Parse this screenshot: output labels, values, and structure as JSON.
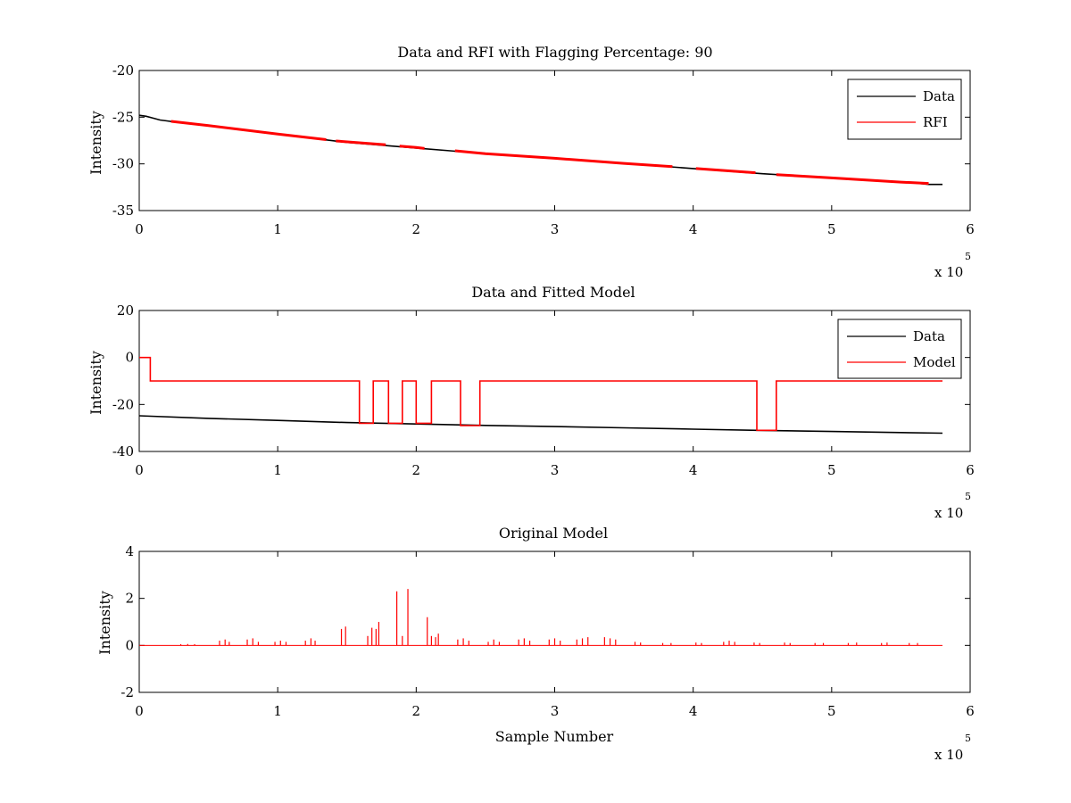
{
  "chart_data": [
    {
      "type": "line",
      "title": "Data and RFI with Flagging Percentage: 90",
      "xlabel": "",
      "ylabel": "Intensity",
      "xlim": [
        0,
        6
      ],
      "ylim": [
        -35,
        -20
      ],
      "x_multiplier": "x 10",
      "x_multiplier_exponent": "5",
      "x_ticks": [
        "0",
        "1",
        "2",
        "3",
        "4",
        "5",
        "6"
      ],
      "y_ticks": [
        "-35",
        "-30",
        "-25",
        "-20"
      ],
      "legend": {
        "placement": "top-right",
        "entries": [
          "Data",
          "RFI"
        ]
      },
      "series": [
        {
          "name": "Data",
          "color": "#000000",
          "x": [
            0.0,
            0.05,
            0.1,
            0.15,
            0.2,
            0.25,
            0.5,
            1.0,
            1.5,
            2.0,
            2.5,
            3.0,
            3.5,
            4.0,
            4.5,
            5.0,
            5.5,
            5.6,
            5.7,
            5.8
          ],
          "y": [
            -24.8,
            -24.9,
            -25.1,
            -25.3,
            -25.4,
            -25.5,
            -25.9,
            -26.8,
            -27.7,
            -28.3,
            -28.9,
            -29.4,
            -29.95,
            -30.5,
            -31.05,
            -31.5,
            -31.95,
            -32.05,
            -32.2,
            -32.2
          ]
        },
        {
          "name": "RFI",
          "color": "#ff0000",
          "segments": [
            {
              "x": [
                0.23,
                0.5,
                1.0,
                1.35
              ],
              "y": [
                -25.45,
                -25.9,
                -26.8,
                -27.4
              ]
            },
            {
              "x": [
                1.42,
                1.78
              ],
              "y": [
                -27.55,
                -27.95
              ]
            },
            {
              "x": [
                1.88,
                2.0,
                2.06
              ],
              "y": [
                -28.1,
                -28.25,
                -28.35
              ]
            },
            {
              "x": [
                2.28,
                2.5,
                3.0,
                3.5,
                3.85
              ],
              "y": [
                -28.6,
                -28.9,
                -29.4,
                -29.95,
                -30.3
              ]
            },
            {
              "x": [
                4.02,
                4.45
              ],
              "y": [
                -30.5,
                -30.95
              ]
            },
            {
              "x": [
                4.6,
                5.0,
                5.5,
                5.7
              ],
              "y": [
                -31.15,
                -31.5,
                -31.95,
                -32.1
              ]
            }
          ]
        }
      ]
    },
    {
      "type": "line",
      "title": "Data and Fitted Model",
      "xlabel": "",
      "ylabel": "Intensity",
      "xlim": [
        0,
        6
      ],
      "ylim": [
        -40,
        20
      ],
      "x_multiplier": "x 10",
      "x_multiplier_exponent": "5",
      "x_ticks": [
        "0",
        "1",
        "2",
        "3",
        "4",
        "5",
        "6"
      ],
      "y_ticks": [
        "-40",
        "-20",
        "0",
        "20"
      ],
      "legend": {
        "placement": "top-right",
        "entries": [
          "Data",
          "Model"
        ]
      },
      "series": [
        {
          "name": "Data",
          "color": "#000000",
          "x": [
            0.0,
            0.5,
            1.0,
            1.5,
            2.0,
            2.5,
            3.0,
            3.5,
            4.0,
            4.5,
            5.0,
            5.5,
            5.8
          ],
          "y": [
            -24.8,
            -25.9,
            -26.8,
            -27.7,
            -28.3,
            -28.9,
            -29.4,
            -29.95,
            -30.5,
            -31.05,
            -31.5,
            -31.95,
            -32.2
          ]
        },
        {
          "name": "Model",
          "color": "#ff0000",
          "x": [
            0.0,
            0.08,
            0.08,
            1.59,
            1.59,
            1.69,
            1.69,
            1.8,
            1.8,
            1.9,
            1.9,
            2.0,
            2.0,
            2.11,
            2.11,
            2.32,
            2.32,
            2.46,
            2.46,
            4.46,
            4.46,
            4.6,
            4.6,
            5.8
          ],
          "y": [
            0,
            0,
            -10,
            -10,
            -28,
            -28,
            -10,
            -10,
            -28,
            -28,
            -10,
            -10,
            -28,
            -28,
            -10,
            -10,
            -29,
            -29,
            -10,
            -10,
            -31,
            -31,
            -10,
            -10
          ]
        }
      ]
    },
    {
      "type": "line",
      "title": "Original Model",
      "xlabel": "Sample Number",
      "ylabel": "Intensity",
      "xlim": [
        0,
        6
      ],
      "ylim": [
        -2,
        4
      ],
      "x_multiplier": "x 10",
      "x_multiplier_exponent": "5",
      "x_ticks": [
        "0",
        "1",
        "2",
        "3",
        "4",
        "5",
        "6"
      ],
      "y_ticks": [
        "-2",
        "0",
        "2",
        "4"
      ],
      "series": [
        {
          "name": "",
          "color": "#ff0000",
          "baseline_range": [
            0,
            5.8
          ],
          "spikes": [
            {
              "x": 0.3,
              "y": 0.05
            },
            {
              "x": 0.35,
              "y": 0.06
            },
            {
              "x": 0.4,
              "y": 0.05
            },
            {
              "x": 0.58,
              "y": 0.2
            },
            {
              "x": 0.62,
              "y": 0.25
            },
            {
              "x": 0.65,
              "y": 0.15
            },
            {
              "x": 0.78,
              "y": 0.25
            },
            {
              "x": 0.82,
              "y": 0.3
            },
            {
              "x": 0.86,
              "y": 0.15
            },
            {
              "x": 0.98,
              "y": 0.15
            },
            {
              "x": 1.02,
              "y": 0.2
            },
            {
              "x": 1.06,
              "y": 0.15
            },
            {
              "x": 1.2,
              "y": 0.2
            },
            {
              "x": 1.24,
              "y": 0.3
            },
            {
              "x": 1.27,
              "y": 0.2
            },
            {
              "x": 1.46,
              "y": 0.7
            },
            {
              "x": 1.49,
              "y": 0.8
            },
            {
              "x": 1.65,
              "y": 0.4
            },
            {
              "x": 1.68,
              "y": 0.75
            },
            {
              "x": 1.71,
              "y": 0.7
            },
            {
              "x": 1.73,
              "y": 1.0
            },
            {
              "x": 1.86,
              "y": 2.3
            },
            {
              "x": 1.9,
              "y": 0.4
            },
            {
              "x": 1.94,
              "y": 2.4
            },
            {
              "x": 2.08,
              "y": 1.2
            },
            {
              "x": 2.11,
              "y": 0.4
            },
            {
              "x": 2.14,
              "y": 0.35
            },
            {
              "x": 2.16,
              "y": 0.5
            },
            {
              "x": 2.3,
              "y": 0.25
            },
            {
              "x": 2.34,
              "y": 0.3
            },
            {
              "x": 2.38,
              "y": 0.2
            },
            {
              "x": 2.52,
              "y": 0.15
            },
            {
              "x": 2.56,
              "y": 0.25
            },
            {
              "x": 2.6,
              "y": 0.15
            },
            {
              "x": 2.74,
              "y": 0.25
            },
            {
              "x": 2.78,
              "y": 0.3
            },
            {
              "x": 2.82,
              "y": 0.2
            },
            {
              "x": 2.96,
              "y": 0.25
            },
            {
              "x": 3.0,
              "y": 0.3
            },
            {
              "x": 3.04,
              "y": 0.2
            },
            {
              "x": 3.16,
              "y": 0.25
            },
            {
              "x": 3.2,
              "y": 0.3
            },
            {
              "x": 3.24,
              "y": 0.35
            },
            {
              "x": 3.36,
              "y": 0.35
            },
            {
              "x": 3.4,
              "y": 0.3
            },
            {
              "x": 3.44,
              "y": 0.25
            },
            {
              "x": 3.58,
              "y": 0.15
            },
            {
              "x": 3.62,
              "y": 0.12
            },
            {
              "x": 3.78,
              "y": 0.1
            },
            {
              "x": 3.84,
              "y": 0.1
            },
            {
              "x": 4.02,
              "y": 0.12
            },
            {
              "x": 4.06,
              "y": 0.1
            },
            {
              "x": 4.22,
              "y": 0.15
            },
            {
              "x": 4.26,
              "y": 0.2
            },
            {
              "x": 4.3,
              "y": 0.15
            },
            {
              "x": 4.44,
              "y": 0.12
            },
            {
              "x": 4.48,
              "y": 0.1
            },
            {
              "x": 4.66,
              "y": 0.12
            },
            {
              "x": 4.7,
              "y": 0.1
            },
            {
              "x": 4.88,
              "y": 0.1
            },
            {
              "x": 4.94,
              "y": 0.1
            },
            {
              "x": 5.12,
              "y": 0.1
            },
            {
              "x": 5.18,
              "y": 0.12
            },
            {
              "x": 5.36,
              "y": 0.1
            },
            {
              "x": 5.4,
              "y": 0.12
            },
            {
              "x": 5.56,
              "y": 0.1
            },
            {
              "x": 5.62,
              "y": 0.1
            }
          ]
        }
      ]
    }
  ]
}
